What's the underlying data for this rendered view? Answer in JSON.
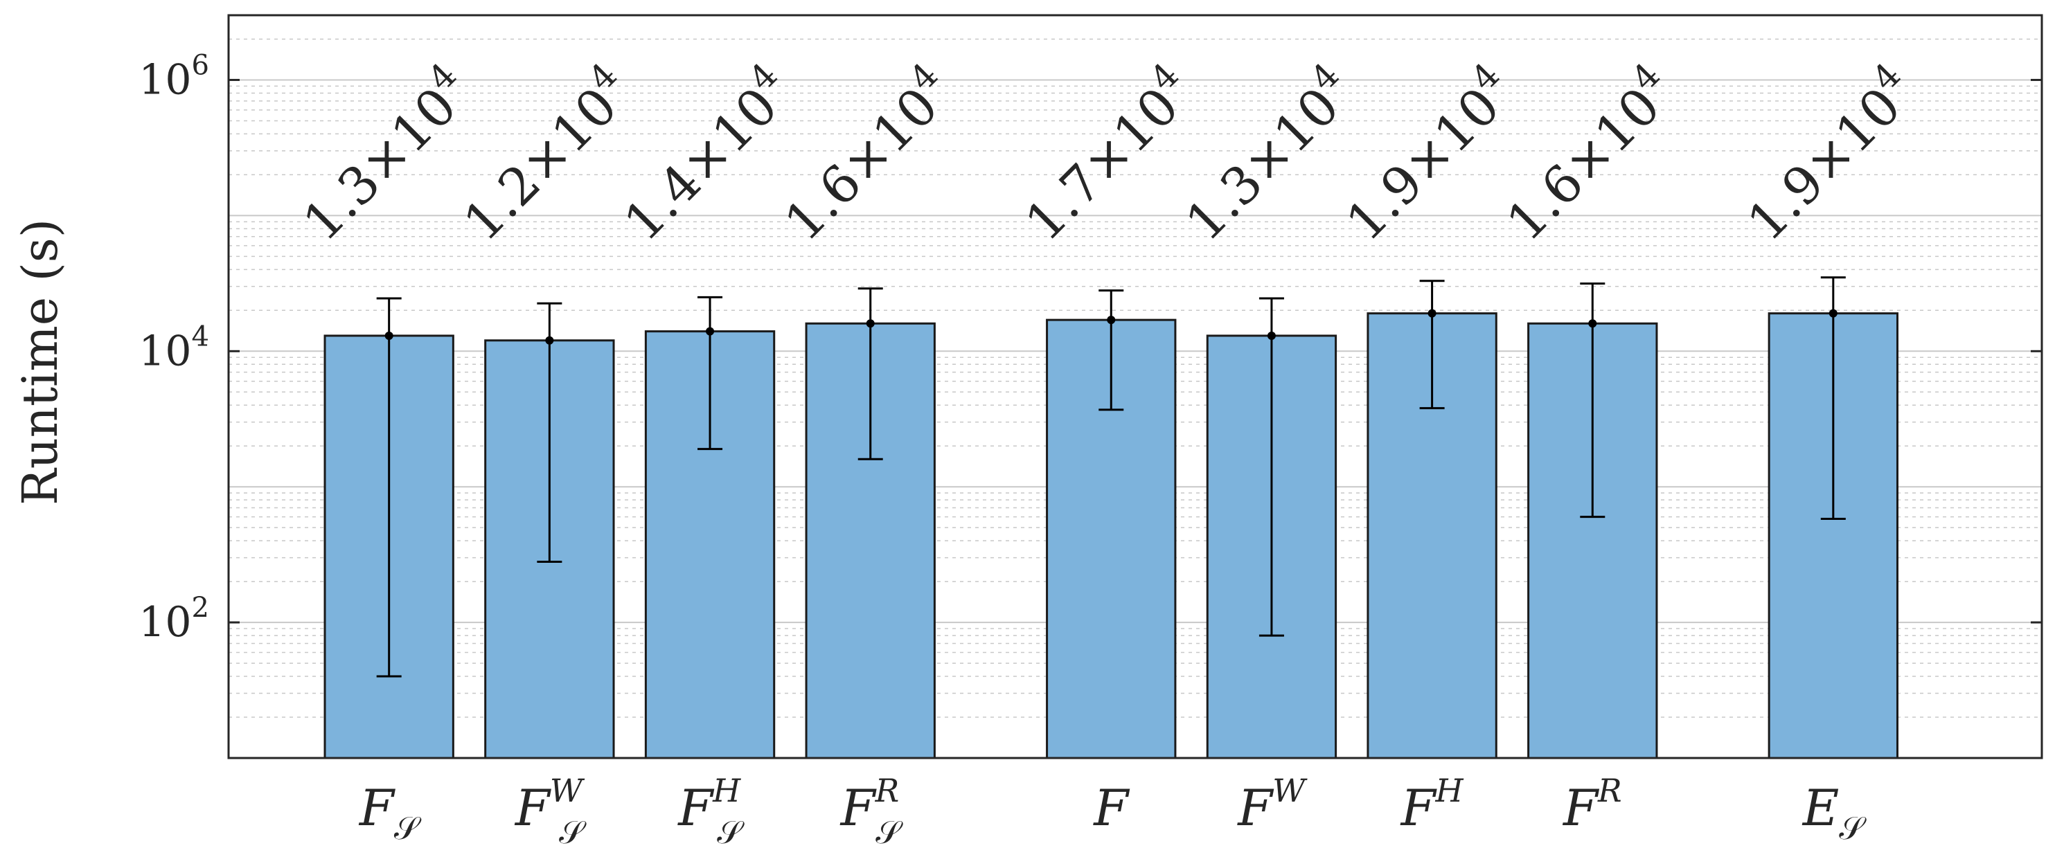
{
  "chart_data": {
    "type": "bar",
    "ylabel": "Runtime (s)",
    "xlabel": "",
    "title": "",
    "yscale": "log",
    "ylim": [
      10,
      3000000
    ],
    "yticks": [
      {
        "value": 100,
        "base": "10",
        "exp": "2"
      },
      {
        "value": 10000,
        "base": "10",
        "exp": "4"
      },
      {
        "value": 1000000,
        "base": "10",
        "exp": "6"
      }
    ],
    "grid": true,
    "categories": [
      {
        "base": "F",
        "sub": "𝒮",
        "sup": ""
      },
      {
        "base": "F",
        "sub": "𝒮",
        "sup": "W"
      },
      {
        "base": "F",
        "sub": "𝒮",
        "sup": "H"
      },
      {
        "base": "F",
        "sub": "𝒮",
        "sup": "R"
      },
      {
        "base": "F",
        "sub": "",
        "sup": ""
      },
      {
        "base": "F",
        "sub": "",
        "sup": "W"
      },
      {
        "base": "F",
        "sub": "",
        "sup": "H"
      },
      {
        "base": "F",
        "sub": "",
        "sup": "R"
      },
      {
        "base": "E",
        "sub": "𝒮",
        "sup": ""
      }
    ],
    "positions": [
      1,
      2,
      3,
      4,
      5.5,
      6.5,
      7.5,
      8.5,
      10
    ],
    "values": [
      13000,
      12000,
      14000,
      16000,
      17000,
      13000,
      19000,
      16000,
      19000
    ],
    "error_low": [
      40,
      280,
      1900,
      1600,
      3700,
      80,
      3800,
      600,
      580
    ],
    "error_high": [
      24500,
      22500,
      25000,
      29000,
      28000,
      24500,
      33000,
      31500,
      35000
    ],
    "data_labels": [
      {
        "mantissa": "1.3",
        "times": "×",
        "base": "10",
        "exp": "4"
      },
      {
        "mantissa": "1.2",
        "times": "×",
        "base": "10",
        "exp": "4"
      },
      {
        "mantissa": "1.4",
        "times": "×",
        "base": "10",
        "exp": "4"
      },
      {
        "mantissa": "1.6",
        "times": "×",
        "base": "10",
        "exp": "4"
      },
      {
        "mantissa": "1.7",
        "times": "×",
        "base": "10",
        "exp": "4"
      },
      {
        "mantissa": "1.3",
        "times": "×",
        "base": "10",
        "exp": "4"
      },
      {
        "mantissa": "1.9",
        "times": "×",
        "base": "10",
        "exp": "4"
      },
      {
        "mantissa": "1.6",
        "times": "×",
        "base": "10",
        "exp": "4"
      },
      {
        "mantissa": "1.9",
        "times": "×",
        "base": "10",
        "exp": "4"
      }
    ],
    "colors": {
      "bar_fill": "#7db3dc",
      "bar_stroke": "#1a1a1a",
      "error": "#000000",
      "grid": "#c8c8c8",
      "axis": "#262626"
    }
  }
}
